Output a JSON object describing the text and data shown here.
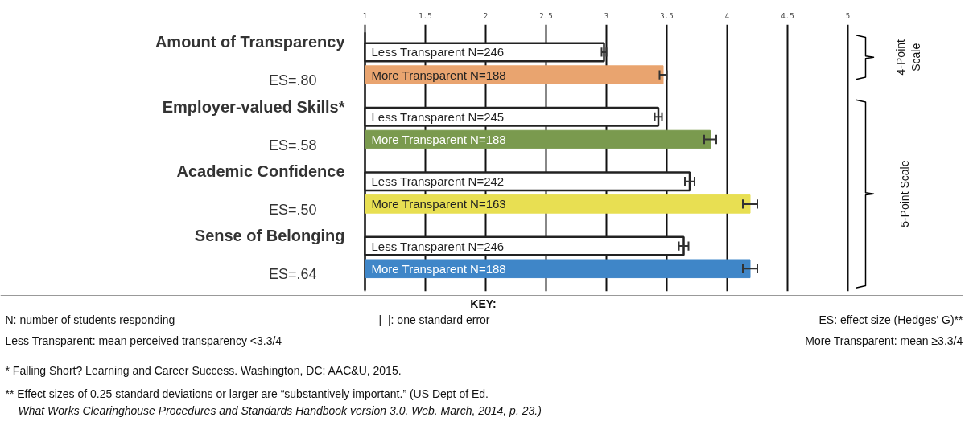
{
  "chart_data": {
    "type": "bar",
    "orientation": "horizontal",
    "categories": [
      "Less Transparent N=246",
      "More Transparent N=188",
      "Less Transparent N=245",
      "More Transparent N=188",
      "Less Transparent N=242",
      "More Transparent N=163",
      "Less Transparent N=246",
      "More Transparent N=188"
    ],
    "values": [
      2.98,
      3.47,
      3.43,
      3.86,
      3.69,
      4.19,
      3.64,
      4.19
    ],
    "errors": [
      0.02,
      0.03,
      0.03,
      0.05,
      0.04,
      0.06,
      0.04,
      0.06
    ],
    "colors": [
      "#ffffff",
      "#e9a46f",
      "#ffffff",
      "#7a9a4e",
      "#ffffff",
      "#e8df52",
      "#ffffff",
      "#3f86c8"
    ],
    "xlim": [
      1,
      5
    ],
    "xticks": [
      1,
      1.5,
      2,
      2.5,
      3,
      3.5,
      4,
      4.5,
      5
    ],
    "grid": "x",
    "annotations": [
      "Amount of Transparency",
      "ES=.80",
      "Employer-valued Skills*",
      "ES=.58",
      "Academic Confidence",
      "ES=.50",
      "Sense of Belonging",
      "ES=.64",
      "4-Point Scale",
      "5-Point Scale",
      "KEY:",
      "N: number of students responding",
      "|–|: one standard error",
      "ES: effect size (Hedges' G)**",
      "Less Transparent: mean perceived transparency <3.3/4",
      "More Transparent: mean ≥3.3/4",
      "* Falling Short? Learning and Career Success. Washington, DC: AAC&U, 2015.",
      "** Effect sizes of 0.25 standard deviations or larger are “substantively important.” (US Dept of Ed.",
      "What Works Clearinghouse Procedures and Standards Handbook version 3.0. Web. March, 2014, p. 23.)"
    ]
  }
}
